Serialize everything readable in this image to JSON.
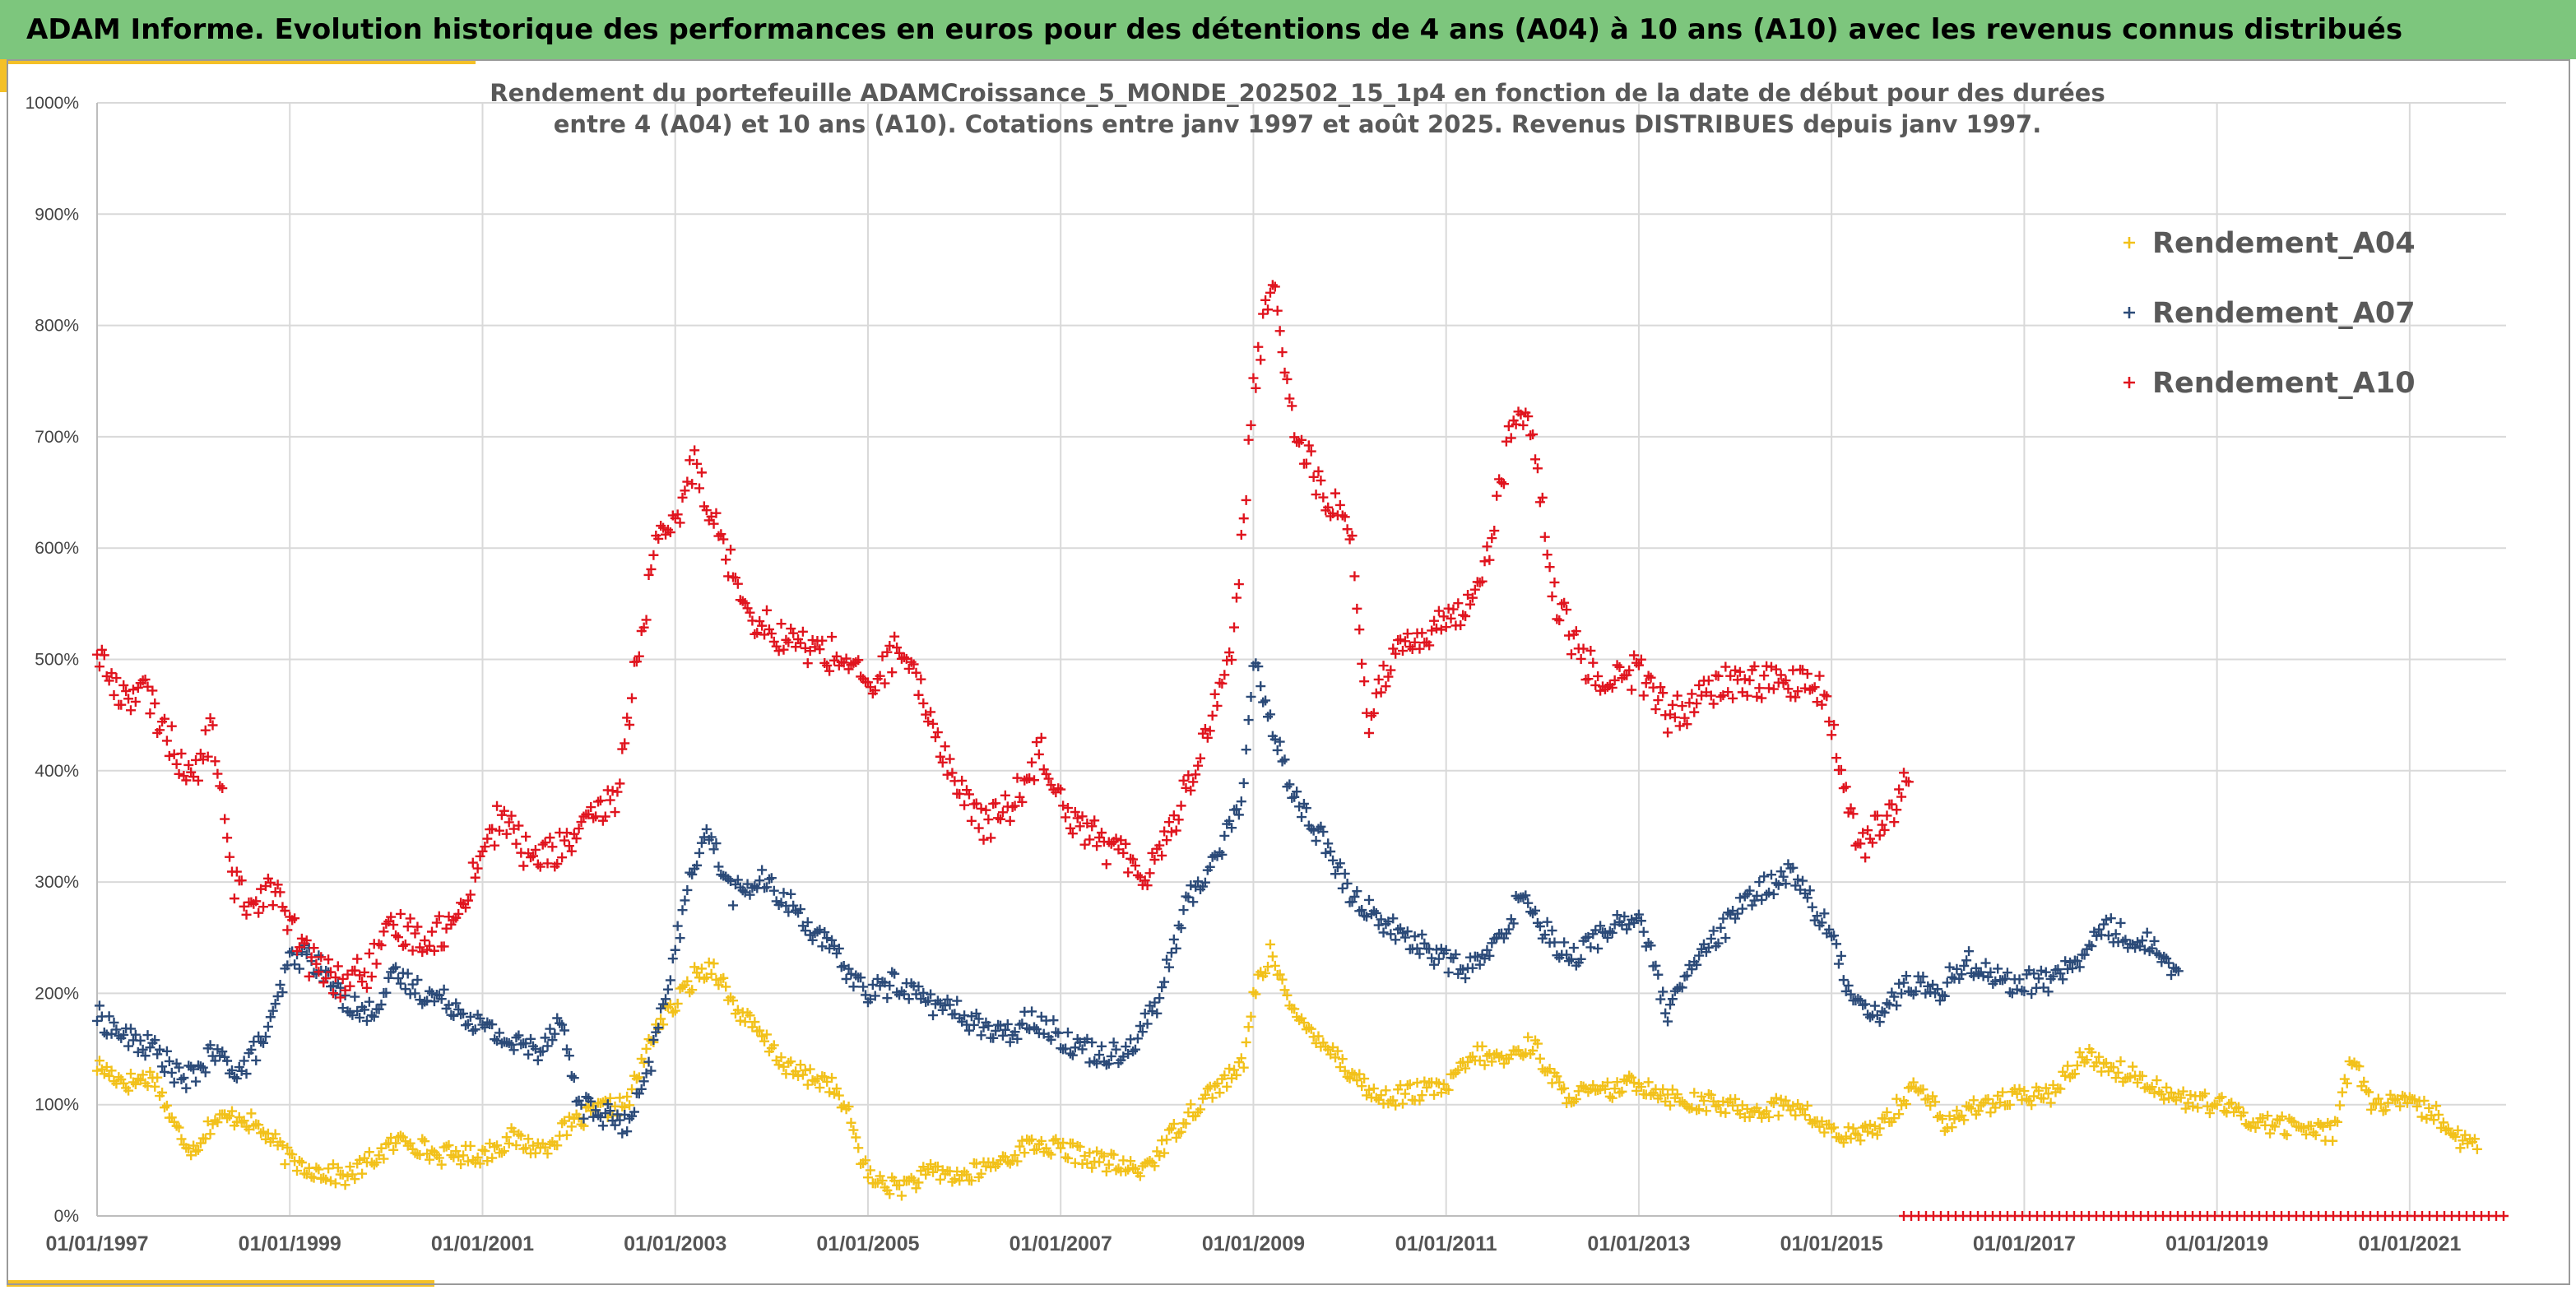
{
  "header": {
    "banner_title": "ADAM Informe. Evolution historique des performances en euros pour des détentions de 4 ans (A04) à 10 ans (A10) avec les revenus connus distribués"
  },
  "colors": {
    "banner_bg": "#7dc67d",
    "accent": "#f4c027",
    "A04": "#f2c11a",
    "A07": "#2b4a78",
    "A10": "#e0141e",
    "grid": "#d9d9d9"
  },
  "chart_data": {
    "type": "scatter",
    "title_line1": "Rendement du portefeuille ADAMCroissance_5_MONDE_202502_15_1p4  en fonction de la date de début pour des durées",
    "title_line2": "entre 4 (A04) et 10 ans (A10). Cotations entre janv 1997 et août 2025. Revenus DISTRIBUES depuis janv 1997.",
    "xlabel": "",
    "ylabel": "",
    "x_ticks": [
      "01/01/1997",
      "01/01/1999",
      "01/01/2001",
      "01/01/2003",
      "01/01/2005",
      "01/01/2007",
      "01/01/2009",
      "01/01/2011",
      "01/01/2013",
      "01/01/2015",
      "01/01/2017",
      "01/01/2019",
      "01/01/2021"
    ],
    "y_ticks": [
      "0%",
      "100%",
      "200%",
      "300%",
      "400%",
      "500%",
      "600%",
      "700%",
      "800%",
      "900%",
      "1000%"
    ],
    "xlim": [
      1997.0,
      2022.0
    ],
    "ylim": [
      0,
      1000
    ],
    "grid": true,
    "legend_position": "top-right",
    "marker": "+",
    "series": [
      {
        "name": "Rendement_A04",
        "points": [
          [
            1997.0,
            135
          ],
          [
            1997.3,
            120
          ],
          [
            1997.6,
            125
          ],
          [
            1997.8,
            80
          ],
          [
            1998.0,
            60
          ],
          [
            1998.2,
            85
          ],
          [
            1998.5,
            90
          ],
          [
            1998.8,
            70
          ],
          [
            1999.0,
            50
          ],
          [
            1999.3,
            40
          ],
          [
            1999.6,
            35
          ],
          [
            2000.0,
            60
          ],
          [
            2000.2,
            70
          ],
          [
            2000.5,
            55
          ],
          [
            2001.0,
            55
          ],
          [
            2001.3,
            70
          ],
          [
            2001.6,
            60
          ],
          [
            2001.9,
            80
          ],
          [
            2002.2,
            95
          ],
          [
            2002.5,
            100
          ],
          [
            2002.8,
            170
          ],
          [
            2003.0,
            190
          ],
          [
            2003.2,
            215
          ],
          [
            2003.4,
            225
          ],
          [
            2003.6,
            190
          ],
          [
            2003.9,
            160
          ],
          [
            2004.2,
            130
          ],
          [
            2004.6,
            120
          ],
          [
            2004.8,
            90
          ],
          [
            2005.0,
            35
          ],
          [
            2005.3,
            25
          ],
          [
            2005.7,
            40
          ],
          [
            2006.0,
            35
          ],
          [
            2006.4,
            50
          ],
          [
            2006.7,
            65
          ],
          [
            2007.0,
            60
          ],
          [
            2007.4,
            50
          ],
          [
            2007.8,
            40
          ],
          [
            2008.0,
            55
          ],
          [
            2008.3,
            90
          ],
          [
            2008.6,
            115
          ],
          [
            2008.9,
            135
          ],
          [
            2009.0,
            200
          ],
          [
            2009.2,
            240
          ],
          [
            2009.4,
            180
          ],
          [
            2009.7,
            160
          ],
          [
            2010.0,
            130
          ],
          [
            2010.3,
            105
          ],
          [
            2010.6,
            110
          ],
          [
            2011.0,
            115
          ],
          [
            2011.3,
            145
          ],
          [
            2011.6,
            140
          ],
          [
            2011.9,
            155
          ],
          [
            2012.2,
            110
          ],
          [
            2012.6,
            110
          ],
          [
            2013.0,
            120
          ],
          [
            2013.4,
            105
          ],
          [
            2013.8,
            100
          ],
          [
            2014.2,
            95
          ],
          [
            2014.6,
            100
          ],
          [
            2015.0,
            75
          ],
          [
            2015.3,
            70
          ],
          [
            2015.6,
            90
          ],
          [
            2015.9,
            120
          ],
          [
            2016.2,
            80
          ],
          [
            2016.5,
            100
          ],
          [
            2016.9,
            105
          ],
          [
            2017.3,
            110
          ],
          [
            2017.6,
            145
          ],
          [
            2018.0,
            130
          ],
          [
            2018.3,
            120
          ],
          [
            2018.6,
            105
          ],
          [
            2019.0,
            100
          ],
          [
            2019.4,
            85
          ],
          [
            2019.8,
            80
          ],
          [
            2020.2,
            75
          ],
          [
            2020.4,
            145
          ],
          [
            2020.6,
            100
          ],
          [
            2021.0,
            100
          ],
          [
            2021.3,
            90
          ],
          [
            2021.5,
            70
          ],
          [
            2021.7,
            60
          ]
        ]
      },
      {
        "name": "Rendement_A07",
        "points": [
          [
            1997.0,
            180
          ],
          [
            1997.3,
            160
          ],
          [
            1997.6,
            150
          ],
          [
            1997.9,
            120
          ],
          [
            1998.2,
            145
          ],
          [
            1998.5,
            130
          ],
          [
            1998.8,
            170
          ],
          [
            1999.0,
            230
          ],
          [
            1999.2,
            235
          ],
          [
            1999.5,
            200
          ],
          [
            1999.8,
            180
          ],
          [
            2000.1,
            215
          ],
          [
            2000.4,
            200
          ],
          [
            2000.7,
            190
          ],
          [
            2001.0,
            170
          ],
          [
            2001.3,
            155
          ],
          [
            2001.6,
            150
          ],
          [
            2001.8,
            180
          ],
          [
            2002.0,
            100
          ],
          [
            2002.3,
            90
          ],
          [
            2002.5,
            80
          ],
          [
            2002.7,
            120
          ],
          [
            2002.9,
            200
          ],
          [
            2003.1,
            280
          ],
          [
            2003.3,
            350
          ],
          [
            2003.6,
            290
          ],
          [
            2003.9,
            300
          ],
          [
            2004.2,
            280
          ],
          [
            2004.6,
            240
          ],
          [
            2005.0,
            200
          ],
          [
            2005.3,
            210
          ],
          [
            2005.7,
            190
          ],
          [
            2006.0,
            180
          ],
          [
            2006.4,
            160
          ],
          [
            2006.7,
            180
          ],
          [
            2007.0,
            160
          ],
          [
            2007.4,
            145
          ],
          [
            2007.7,
            150
          ],
          [
            2008.0,
            190
          ],
          [
            2008.3,
            280
          ],
          [
            2008.6,
            320
          ],
          [
            2008.9,
            380
          ],
          [
            2009.0,
            500
          ],
          [
            2009.2,
            440
          ],
          [
            2009.4,
            380
          ],
          [
            2009.7,
            340
          ],
          [
            2010.0,
            290
          ],
          [
            2010.4,
            260
          ],
          [
            2010.8,
            240
          ],
          [
            2011.2,
            220
          ],
          [
            2011.5,
            240
          ],
          [
            2011.8,
            290
          ],
          [
            2012.0,
            260
          ],
          [
            2012.3,
            230
          ],
          [
            2012.7,
            260
          ],
          [
            2013.0,
            270
          ],
          [
            2013.3,
            180
          ],
          [
            2013.6,
            230
          ],
          [
            2013.9,
            260
          ],
          [
            2014.2,
            290
          ],
          [
            2014.6,
            310
          ],
          [
            2015.0,
            250
          ],
          [
            2015.2,
            200
          ],
          [
            2015.5,
            180
          ],
          [
            2015.8,
            210
          ],
          [
            2016.1,
            200
          ],
          [
            2016.4,
            230
          ],
          [
            2016.8,
            210
          ],
          [
            2017.2,
            210
          ],
          [
            2017.6,
            230
          ],
          [
            2017.8,
            260
          ],
          [
            2018.1,
            250
          ],
          [
            2018.4,
            240
          ],
          [
            2018.6,
            220
          ]
        ]
      },
      {
        "name": "Rendement_A10",
        "points": [
          [
            1997.0,
            510
          ],
          [
            1997.2,
            470
          ],
          [
            1997.5,
            470
          ],
          [
            1997.8,
            420
          ],
          [
            1998.0,
            390
          ],
          [
            1998.2,
            440
          ],
          [
            1998.4,
            300
          ],
          [
            1998.6,
            280
          ],
          [
            1998.8,
            300
          ],
          [
            1999.0,
            260
          ],
          [
            1999.2,
            230
          ],
          [
            1999.5,
            210
          ],
          [
            1999.8,
            220
          ],
          [
            2000.1,
            260
          ],
          [
            2000.4,
            250
          ],
          [
            2000.7,
            260
          ],
          [
            2001.0,
            330
          ],
          [
            2001.2,
            360
          ],
          [
            2001.5,
            320
          ],
          [
            2001.8,
            330
          ],
          [
            2002.1,
            350
          ],
          [
            2002.4,
            380
          ],
          [
            2002.6,
            500
          ],
          [
            2002.8,
            600
          ],
          [
            2003.0,
            620
          ],
          [
            2003.2,
            680
          ],
          [
            2003.5,
            600
          ],
          [
            2003.8,
            540
          ],
          [
            2004.1,
            520
          ],
          [
            2004.4,
            510
          ],
          [
            2004.8,
            500
          ],
          [
            2005.0,
            470
          ],
          [
            2005.3,
            510
          ],
          [
            2005.6,
            460
          ],
          [
            2005.9,
            390
          ],
          [
            2006.2,
            350
          ],
          [
            2006.5,
            370
          ],
          [
            2006.8,
            420
          ],
          [
            2007.1,
            360
          ],
          [
            2007.5,
            330
          ],
          [
            2007.9,
            310
          ],
          [
            2008.2,
            360
          ],
          [
            2008.5,
            430
          ],
          [
            2008.8,
            520
          ],
          [
            2009.0,
            740
          ],
          [
            2009.2,
            850
          ],
          [
            2009.4,
            720
          ],
          [
            2009.7,
            650
          ],
          [
            2010.0,
            620
          ],
          [
            2010.2,
            440
          ],
          [
            2010.5,
            520
          ],
          [
            2010.8,
            520
          ],
          [
            2011.1,
            540
          ],
          [
            2011.4,
            580
          ],
          [
            2011.7,
            720
          ],
          [
            2011.9,
            700
          ],
          [
            2012.1,
            560
          ],
          [
            2012.4,
            500
          ],
          [
            2012.7,
            480
          ],
          [
            2013.0,
            490
          ],
          [
            2013.3,
            450
          ],
          [
            2013.6,
            460
          ],
          [
            2013.9,
            480
          ],
          [
            2014.2,
            480
          ],
          [
            2014.6,
            480
          ],
          [
            2014.9,
            470
          ],
          [
            2015.1,
            400
          ],
          [
            2015.3,
            330
          ],
          [
            2015.6,
            360
          ],
          [
            2015.8,
            390
          ]
        ]
      },
      {
        "name": "",
        "points": [
          [
            2015.75,
            0
          ],
          [
            2022.0,
            0
          ]
        ]
      }
    ]
  }
}
